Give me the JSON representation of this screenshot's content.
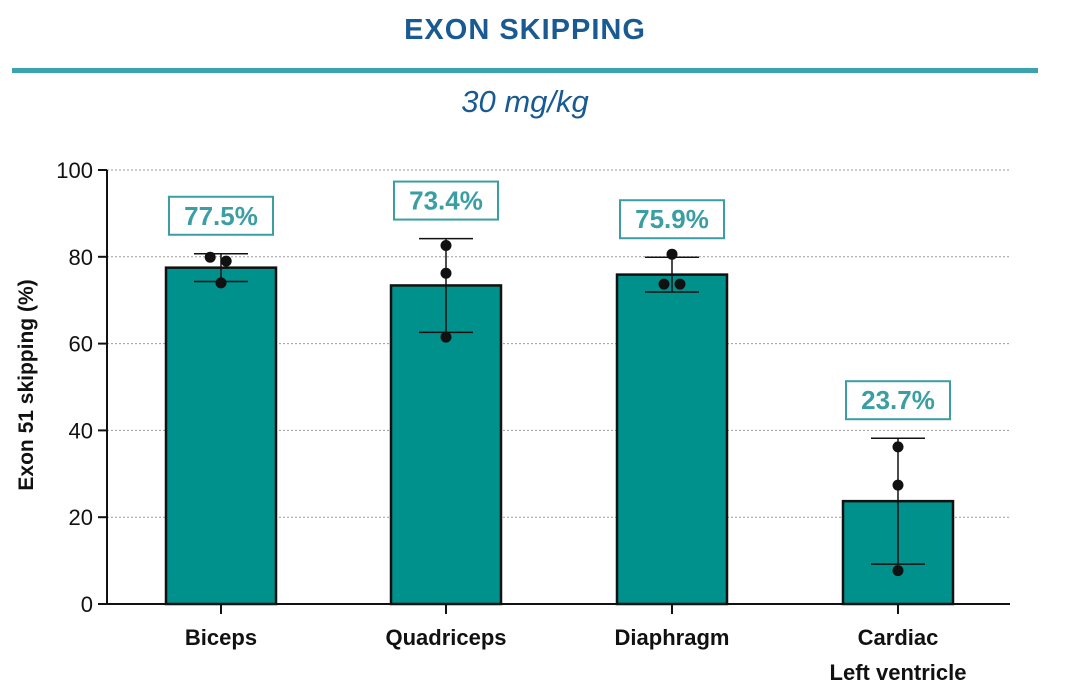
{
  "header": {
    "title": "EXON SKIPPING",
    "subtitle": "30 mg/kg"
  },
  "colors": {
    "title": "#1a5a92",
    "rule": "#3aa3ad",
    "bar": "#00918c",
    "label": "#3a9ea3"
  },
  "chart_data": {
    "type": "bar",
    "title": "EXON SKIPPING",
    "subtitle": "30 mg/kg",
    "xlabel": "",
    "ylabel": "Exon 51 skipping (%)",
    "ylim": [
      0,
      100
    ],
    "yticks": [
      0,
      20,
      40,
      60,
      80,
      100
    ],
    "grid": true,
    "categories": [
      {
        "lines": [
          "Biceps"
        ]
      },
      {
        "lines": [
          "Quadriceps"
        ]
      },
      {
        "lines": [
          "Diaphragm"
        ]
      },
      {
        "lines": [
          "Cardiac",
          "Left ventricle"
        ]
      }
    ],
    "values": [
      77.5,
      73.4,
      75.9,
      23.7
    ],
    "data_labels": [
      "77.5%",
      "73.4%",
      "75.9%",
      "23.7%"
    ],
    "error_bars": [
      {
        "low": 74.3,
        "high": 80.7
      },
      {
        "low": 62.6,
        "high": 84.2
      },
      {
        "low": 71.9,
        "high": 79.9
      },
      {
        "low": 9.2,
        "high": 38.2
      }
    ],
    "points": [
      [
        {
          "x": -0.27,
          "y": 79.9
        },
        {
          "x": 0.13,
          "y": 79.0
        },
        {
          "x": 0.0,
          "y": 74.0
        }
      ],
      [
        {
          "x": 0.0,
          "y": 82.6
        },
        {
          "x": 0.0,
          "y": 76.2
        },
        {
          "x": 0.0,
          "y": 61.5
        }
      ],
      [
        {
          "x": 0.0,
          "y": 80.6
        },
        {
          "x": -0.2,
          "y": 73.7
        },
        {
          "x": 0.2,
          "y": 73.7
        }
      ],
      [
        {
          "x": 0.0,
          "y": 36.2
        },
        {
          "x": 0.0,
          "y": 27.4
        },
        {
          "x": 0.0,
          "y": 7.7
        }
      ]
    ]
  }
}
